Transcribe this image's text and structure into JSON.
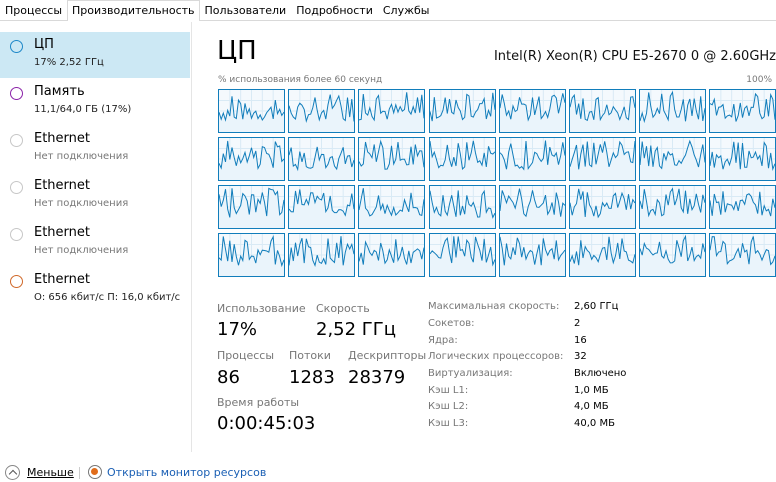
{
  "tabs": [
    "Процессы",
    "Производительность",
    "Пользователи",
    "Подробности",
    "Службы"
  ],
  "active_tab": 1,
  "resources": [
    {
      "title": "ЦП",
      "sub": "17% 2,52 ГГц",
      "color": "#1e88c8",
      "selected": true
    },
    {
      "title": "Память",
      "sub": "11,1/64,0 ГБ (17%)",
      "color": "#8b23a8",
      "selected": false
    },
    {
      "title": "Ethernet",
      "sub": "Нет подключения",
      "color": "#c7c7c7",
      "selected": false
    },
    {
      "title": "Ethernet",
      "sub": "Нет подключения",
      "color": "#c7c7c7",
      "selected": false
    },
    {
      "title": "Ethernet",
      "sub": "Нет подключения",
      "color": "#c7c7c7",
      "selected": false
    },
    {
      "title": "Ethernet",
      "sub": "О: 656 кбит/с П: 16,0 кбит/с",
      "color": "#d0692a",
      "selected": false
    }
  ],
  "main": {
    "title": "ЦП",
    "cpu_model": "Intel(R) Xeon(R) CPU E5-2670 0 @ 2.60GHz",
    "util_label": "% использования более 60 секунд",
    "util_max": "100%",
    "logical_graphs": 32
  },
  "stats": {
    "usage_label": "Использование",
    "usage_value": "17%",
    "speed_label": "Скорость",
    "speed_value": "2,52 ГГц",
    "processes_label": "Процессы",
    "processes_value": "86",
    "threads_label": "Потоки",
    "threads_value": "1283",
    "handles_label": "Дескрипторы",
    "handles_value": "28379",
    "uptime_label": "Время работы",
    "uptime_value": "0:00:45:03"
  },
  "specs": [
    {
      "k": "Максимальная скорость:",
      "v": "2,60 ГГц"
    },
    {
      "k": "Сокетов:",
      "v": "2"
    },
    {
      "k": "Ядра:",
      "v": "16"
    },
    {
      "k": "Логических процессоров:",
      "v": "32"
    },
    {
      "k": "Виртуализация:",
      "v": "Включено"
    },
    {
      "k": "Кэш L1:",
      "v": "1,0 МБ"
    },
    {
      "k": "Кэш L2:",
      "v": "4,0 МБ"
    },
    {
      "k": "Кэш L3:",
      "v": "40,0 МБ"
    }
  ],
  "footer": {
    "fewer": "Меньше",
    "open_monitor": "Открыть монитор ресурсов"
  },
  "colors": {
    "accent": "#117dbb",
    "selected_bg": "#cce8f4"
  }
}
